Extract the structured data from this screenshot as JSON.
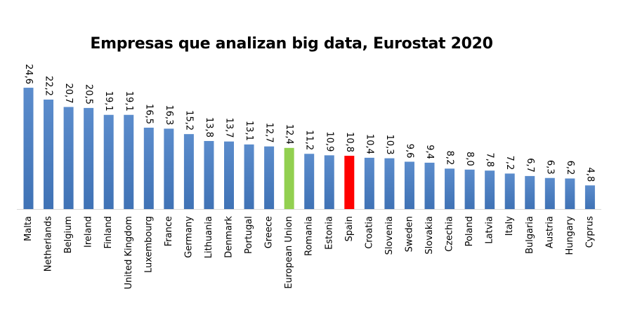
{
  "chart_data": {
    "type": "bar",
    "title": "Empresas que analizan big data, Eurostat 2020",
    "xlabel": "",
    "ylabel": "",
    "ylim": [
      0,
      25
    ],
    "grid": false,
    "legend": "none",
    "categories": [
      "Malta",
      "Netherlands",
      "Belgium",
      "Ireland",
      "Finland",
      "United Kingdom",
      "Luxembourg",
      "France",
      "Germany",
      "Lithuania",
      "Denmark",
      "Portugal",
      "Greece",
      "European Union",
      "Romania",
      "Estonia",
      "Spain",
      "Croatia",
      "Slovenia",
      "Sweden",
      "Slovakia",
      "Czechia",
      "Poland",
      "Latvia",
      "Italy",
      "Bulgaria",
      "Austria",
      "Hungary",
      "Cyprus"
    ],
    "values": [
      24.6,
      22.2,
      20.7,
      20.5,
      19.1,
      19.1,
      16.5,
      16.3,
      15.2,
      13.8,
      13.7,
      13.1,
      12.7,
      12.4,
      11.2,
      10.9,
      10.8,
      10.4,
      10.3,
      9.6,
      9.4,
      8.2,
      8.0,
      7.8,
      7.2,
      6.7,
      6.3,
      6.2,
      4.8
    ],
    "value_labels": [
      "24,6",
      "22,2",
      "20,7",
      "20,5",
      "19,1",
      "19,1",
      "16,5",
      "16,3",
      "15,2",
      "13,8",
      "13,7",
      "13,1",
      "12,7",
      "12,4",
      "11,2",
      "10,9",
      "10,8",
      "10,4",
      "10,3",
      "9,6",
      "9,4",
      "8,2",
      "8,0",
      "7,8",
      "7,2",
      "6,7",
      "6,3",
      "6,2",
      "4,8"
    ],
    "colors": {
      "default": "#4a7ebb",
      "highlights": {
        "European Union": "#92d050",
        "Spain": "#ff0000"
      },
      "axis": "#d9d9d9"
    }
  }
}
